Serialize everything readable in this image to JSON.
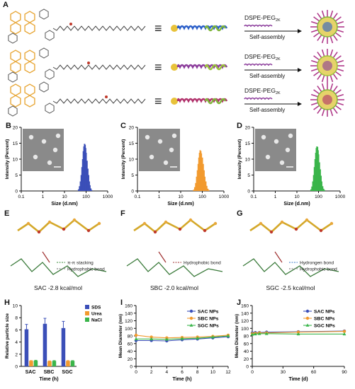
{
  "panel_letters": {
    "A": "A",
    "B": "B",
    "C": "C",
    "D": "D",
    "E": "E",
    "F": "F",
    "G": "G",
    "H": "H",
    "I": "I",
    "J": "J"
  },
  "panel_a": {
    "rows": [
      {
        "reagent": "DSPE-PEG",
        "sub": "2K",
        "process": "Self-assembly",
        "colors": {
          "chain": "#2a5ec8",
          "tail": "#7fb53a",
          "head": "#e8c23a",
          "corona": "#b03a8a"
        }
      },
      {
        "reagent": "DSPE-PEG",
        "sub": "2K",
        "process": "Self-assembly",
        "colors": {
          "chain": "#8a3a9a",
          "tail": "#9ac23a",
          "head": "#e8c23a",
          "corona": "#b03a8a"
        }
      },
      {
        "reagent": "DSPE-PEG",
        "sub": "2K",
        "process": "Self-assembly",
        "colors": {
          "chain": "#b0306a",
          "tail": "#7fb53a",
          "head": "#e8c23a",
          "corona": "#b03a8a"
        }
      }
    ],
    "equiv_symbol": "≡"
  },
  "dls_panels": [
    {
      "id": "B",
      "ylabel": "Intensity (Percent)",
      "xlabel": "Size (d.nm)",
      "color": "#3b4fb8",
      "xticks": [
        "0.1",
        "1",
        "10",
        "100",
        "1000"
      ],
      "yticks": [
        "0",
        "5",
        "10",
        "15",
        "20"
      ]
    },
    {
      "id": "C",
      "ylabel": "Intensity (Percent)",
      "xlabel": "Size (d.nm)",
      "color": "#f29a2e",
      "xticks": [
        "0.1",
        "1",
        "10",
        "100",
        "1000"
      ],
      "yticks": [
        "0",
        "5",
        "10",
        "15",
        "20"
      ]
    },
    {
      "id": "D",
      "ylabel": "Intensity (Percent)",
      "xlabel": "Size (d.nm)",
      "color": "#3ab54a",
      "xticks": [
        "0.1",
        "1",
        "10",
        "100",
        "1000"
      ],
      "yticks": [
        "0",
        "5",
        "10",
        "15",
        "20"
      ]
    }
  ],
  "docking": [
    {
      "id": "E",
      "caption": "SAC -2.8 kcal/mol",
      "legend": [
        {
          "label": "π-π stacking",
          "color": "#3a8a3a"
        },
        {
          "label": "Hydrophobic bond",
          "color": "#666666"
        }
      ]
    },
    {
      "id": "F",
      "caption": "SBC -2.0 kcal/mol",
      "legend": [
        {
          "label": "Hydrophobic bond",
          "color": "#a03030"
        }
      ]
    },
    {
      "id": "G",
      "caption": "SGC -2.5 kcal/mol",
      "legend": [
        {
          "label": "Hydrongen bond",
          "color": "#3a7ac8"
        },
        {
          "label": "Hydrophobic bond",
          "color": "#666666"
        }
      ]
    }
  ],
  "chart_data": [
    {
      "panel": "B",
      "type": "bar",
      "xlabel": "Size (d.nm)",
      "ylabel": "Intensity (Percent)",
      "xscale": "log",
      "xlim": [
        0.1,
        1000
      ],
      "ylim": [
        0,
        20
      ],
      "x": [
        45,
        50,
        55,
        60,
        65,
        70,
        75,
        80,
        85,
        90,
        95,
        100,
        110,
        120,
        130,
        140,
        150,
        165,
        180
      ],
      "values": [
        0.5,
        1.5,
        3,
        5,
        7.5,
        10,
        12.5,
        14,
        14.8,
        14.5,
        13.5,
        12,
        9.5,
        7,
        5,
        3,
        1.8,
        0.8,
        0.3
      ],
      "series": [
        {
          "name": "",
          "color": "#3b4fb8"
        }
      ]
    },
    {
      "panel": "C",
      "type": "bar",
      "xlabel": "Size (d.nm)",
      "ylabel": "Intensity (Percent)",
      "xscale": "log",
      "xlim": [
        0.1,
        1000
      ],
      "ylim": [
        0,
        20
      ],
      "x": [
        40,
        45,
        50,
        55,
        60,
        65,
        70,
        75,
        80,
        85,
        90,
        100,
        110,
        120,
        130,
        145,
        160,
        180,
        200
      ],
      "values": [
        0.4,
        1.2,
        2.5,
        4.5,
        6.5,
        8.5,
        10.5,
        12,
        12.8,
        12.5,
        11.8,
        10.5,
        8.5,
        6.5,
        4.5,
        3,
        1.6,
        0.7,
        0.3
      ],
      "series": [
        {
          "name": "",
          "color": "#f29a2e"
        }
      ]
    },
    {
      "panel": "D",
      "type": "bar",
      "xlabel": "Size (d.nm)",
      "ylabel": "Intensity (Percent)",
      "xscale": "log",
      "xlim": [
        0.1,
        1000
      ],
      "ylim": [
        0,
        20
      ],
      "x": [
        45,
        50,
        55,
        60,
        65,
        70,
        75,
        80,
        85,
        90,
        95,
        100,
        110,
        120,
        130,
        140,
        155,
        170,
        190
      ],
      "values": [
        0.5,
        1.4,
        3,
        5,
        7.5,
        10,
        12,
        13.5,
        14,
        13.8,
        12.8,
        11.5,
        9,
        6.8,
        4.8,
        3,
        1.5,
        0.7,
        0.3
      ],
      "series": [
        {
          "name": "",
          "color": "#3ab54a"
        }
      ]
    },
    {
      "panel": "H",
      "type": "bar",
      "xlabel": "Time (h)",
      "ylabel": "Relative particle size",
      "ylim": [
        0,
        10
      ],
      "yticks": [
        "0",
        "2",
        "4",
        "6",
        "8",
        "10"
      ],
      "categories": [
        "SAC",
        "SBC",
        "SGC"
      ],
      "series": [
        {
          "name": "SDS",
          "color": "#3b4fb8",
          "values": [
            6.1,
            7.0,
            6.3
          ],
          "errors": [
            0.8,
            0.9,
            1.1
          ]
        },
        {
          "name": "Urea",
          "color": "#f29a2e",
          "values": [
            0.9,
            0.85,
            0.9
          ],
          "errors": [
            0.05,
            0.05,
            0.05
          ]
        },
        {
          "name": "NaCl",
          "color": "#3ab54a",
          "values": [
            0.95,
            0.9,
            0.9
          ],
          "errors": [
            0.05,
            0.05,
            0.05
          ]
        }
      ]
    },
    {
      "panel": "I",
      "type": "line",
      "xlabel": "Time (h)",
      "ylabel": "Mean Diameter (nm)",
      "xlim": [
        0,
        12
      ],
      "ylim": [
        0,
        160
      ],
      "xticks": [
        "0",
        "2",
        "4",
        "6",
        "8",
        "10",
        "12"
      ],
      "yticks": [
        "0",
        "20",
        "40",
        "60",
        "80",
        "100",
        "120",
        "140",
        "160"
      ],
      "x": [
        0,
        2,
        4,
        6,
        8,
        10,
        12
      ],
      "series": [
        {
          "name": "SAC NPs",
          "color": "#3b4fb8",
          "marker": "circle",
          "values": [
            68,
            68,
            67,
            70,
            72,
            75,
            78
          ]
        },
        {
          "name": "SBC NPs",
          "color": "#f29a2e",
          "marker": "circle",
          "values": [
            82,
            77,
            75,
            76,
            77,
            79,
            82
          ]
        },
        {
          "name": "SGC NPs",
          "color": "#3ab54a",
          "marker": "triangle",
          "values": [
            72,
            72,
            71,
            73,
            74,
            77,
            80
          ]
        }
      ]
    },
    {
      "panel": "J",
      "type": "line",
      "xlabel": "Time (d)",
      "ylabel": "Mean Diameter (nm)",
      "xlim": [
        0,
        90
      ],
      "ylim": [
        0,
        160
      ],
      "xticks": [
        "0",
        "30",
        "60",
        "90"
      ],
      "yticks": [
        "0",
        "20",
        "40",
        "60",
        "80",
        "100",
        "120",
        "140",
        "160"
      ],
      "x": [
        0,
        3,
        7,
        14,
        45,
        90
      ],
      "series": [
        {
          "name": "SAC NPs",
          "color": "#3b4fb8",
          "marker": "circle",
          "values": [
            88,
            89,
            89,
            90,
            91,
            93
          ]
        },
        {
          "name": "SBC NPs",
          "color": "#f29a2e",
          "marker": "circle",
          "values": [
            86,
            87,
            88,
            88,
            90,
            92
          ]
        },
        {
          "name": "SGC NPs",
          "color": "#3ab54a",
          "marker": "triangle",
          "values": [
            84,
            85,
            86,
            86,
            85,
            85
          ]
        }
      ]
    }
  ]
}
